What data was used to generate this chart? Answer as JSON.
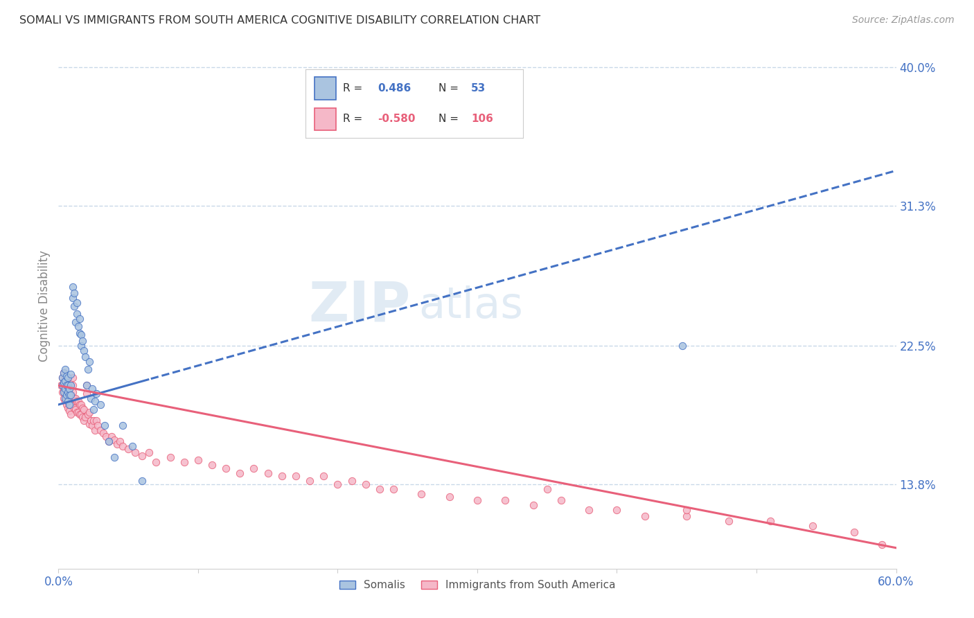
{
  "title": "SOMALI VS IMMIGRANTS FROM SOUTH AMERICA COGNITIVE DISABILITY CORRELATION CHART",
  "source": "Source: ZipAtlas.com",
  "ylabel": "Cognitive Disability",
  "xlim": [
    0.0,
    0.6
  ],
  "ylim": [
    0.085,
    0.415
  ],
  "yticks": [
    0.138,
    0.225,
    0.313,
    0.4
  ],
  "ytick_labels": [
    "13.8%",
    "22.5%",
    "31.3%",
    "40.0%"
  ],
  "xticks": [
    0.0,
    0.1,
    0.2,
    0.3,
    0.4,
    0.5,
    0.6
  ],
  "xtick_labels": [
    "0.0%",
    "",
    "",
    "",
    "",
    "",
    "60.0%"
  ],
  "somali_color": "#aac4e0",
  "south_america_color": "#f5b8c8",
  "somali_line_color": "#4472c4",
  "south_america_line_color": "#e8607a",
  "R_somali": 0.486,
  "N_somali": 53,
  "R_south_america": -0.58,
  "N_south_america": 106,
  "watermark": "ZIPatlas",
  "background_color": "#ffffff",
  "grid_color": "#c8d8e8",
  "title_color": "#333333",
  "tick_label_color": "#4472c4",
  "somali_x": [
    0.003,
    0.003,
    0.004,
    0.004,
    0.004,
    0.005,
    0.005,
    0.005,
    0.005,
    0.006,
    0.006,
    0.006,
    0.007,
    0.007,
    0.007,
    0.007,
    0.008,
    0.008,
    0.008,
    0.009,
    0.009,
    0.009,
    0.01,
    0.01,
    0.011,
    0.011,
    0.012,
    0.013,
    0.013,
    0.014,
    0.015,
    0.015,
    0.016,
    0.016,
    0.017,
    0.018,
    0.019,
    0.02,
    0.021,
    0.022,
    0.023,
    0.024,
    0.025,
    0.026,
    0.027,
    0.03,
    0.033,
    0.036,
    0.04,
    0.046,
    0.053,
    0.06,
    0.447
  ],
  "somali_y": [
    0.2,
    0.205,
    0.196,
    0.202,
    0.208,
    0.192,
    0.198,
    0.203,
    0.21,
    0.194,
    0.2,
    0.206,
    0.19,
    0.196,
    0.2,
    0.205,
    0.188,
    0.194,
    0.198,
    0.194,
    0.2,
    0.207,
    0.255,
    0.262,
    0.25,
    0.258,
    0.24,
    0.245,
    0.252,
    0.237,
    0.233,
    0.242,
    0.225,
    0.232,
    0.228,
    0.222,
    0.218,
    0.2,
    0.21,
    0.215,
    0.192,
    0.198,
    0.185,
    0.19,
    0.195,
    0.188,
    0.175,
    0.165,
    0.155,
    0.175,
    0.162,
    0.14,
    0.225
  ],
  "sa_x": [
    0.002,
    0.003,
    0.003,
    0.003,
    0.004,
    0.004,
    0.004,
    0.004,
    0.005,
    0.005,
    0.005,
    0.005,
    0.006,
    0.006,
    0.006,
    0.006,
    0.007,
    0.007,
    0.007,
    0.008,
    0.008,
    0.008,
    0.008,
    0.009,
    0.009,
    0.009,
    0.01,
    0.01,
    0.01,
    0.01,
    0.011,
    0.011,
    0.012,
    0.012,
    0.013,
    0.013,
    0.014,
    0.014,
    0.015,
    0.015,
    0.016,
    0.016,
    0.017,
    0.017,
    0.018,
    0.018,
    0.019,
    0.02,
    0.02,
    0.021,
    0.022,
    0.022,
    0.023,
    0.024,
    0.025,
    0.026,
    0.027,
    0.028,
    0.03,
    0.032,
    0.034,
    0.036,
    0.038,
    0.04,
    0.042,
    0.044,
    0.046,
    0.05,
    0.055,
    0.06,
    0.065,
    0.07,
    0.08,
    0.09,
    0.1,
    0.11,
    0.12,
    0.13,
    0.14,
    0.15,
    0.16,
    0.17,
    0.18,
    0.19,
    0.2,
    0.21,
    0.22,
    0.23,
    0.24,
    0.26,
    0.28,
    0.3,
    0.32,
    0.34,
    0.36,
    0.38,
    0.4,
    0.42,
    0.45,
    0.48,
    0.51,
    0.54,
    0.57,
    0.59,
    0.35,
    0.45
  ],
  "sa_y": [
    0.2,
    0.196,
    0.2,
    0.205,
    0.192,
    0.197,
    0.202,
    0.208,
    0.19,
    0.195,
    0.2,
    0.205,
    0.188,
    0.192,
    0.197,
    0.203,
    0.186,
    0.19,
    0.196,
    0.184,
    0.188,
    0.194,
    0.2,
    0.182,
    0.188,
    0.194,
    0.192,
    0.196,
    0.2,
    0.205,
    0.186,
    0.192,
    0.185,
    0.192,
    0.183,
    0.19,
    0.183,
    0.19,
    0.182,
    0.188,
    0.182,
    0.188,
    0.18,
    0.186,
    0.178,
    0.185,
    0.18,
    0.195,
    0.2,
    0.182,
    0.176,
    0.183,
    0.178,
    0.175,
    0.178,
    0.172,
    0.178,
    0.175,
    0.172,
    0.17,
    0.168,
    0.165,
    0.168,
    0.166,
    0.163,
    0.165,
    0.162,
    0.16,
    0.158,
    0.156,
    0.158,
    0.152,
    0.155,
    0.152,
    0.153,
    0.15,
    0.148,
    0.145,
    0.148,
    0.145,
    0.143,
    0.143,
    0.14,
    0.143,
    0.138,
    0.14,
    0.138,
    0.135,
    0.135,
    0.132,
    0.13,
    0.128,
    0.128,
    0.125,
    0.128,
    0.122,
    0.122,
    0.118,
    0.118,
    0.115,
    0.115,
    0.112,
    0.108,
    0.1,
    0.135,
    0.122
  ]
}
